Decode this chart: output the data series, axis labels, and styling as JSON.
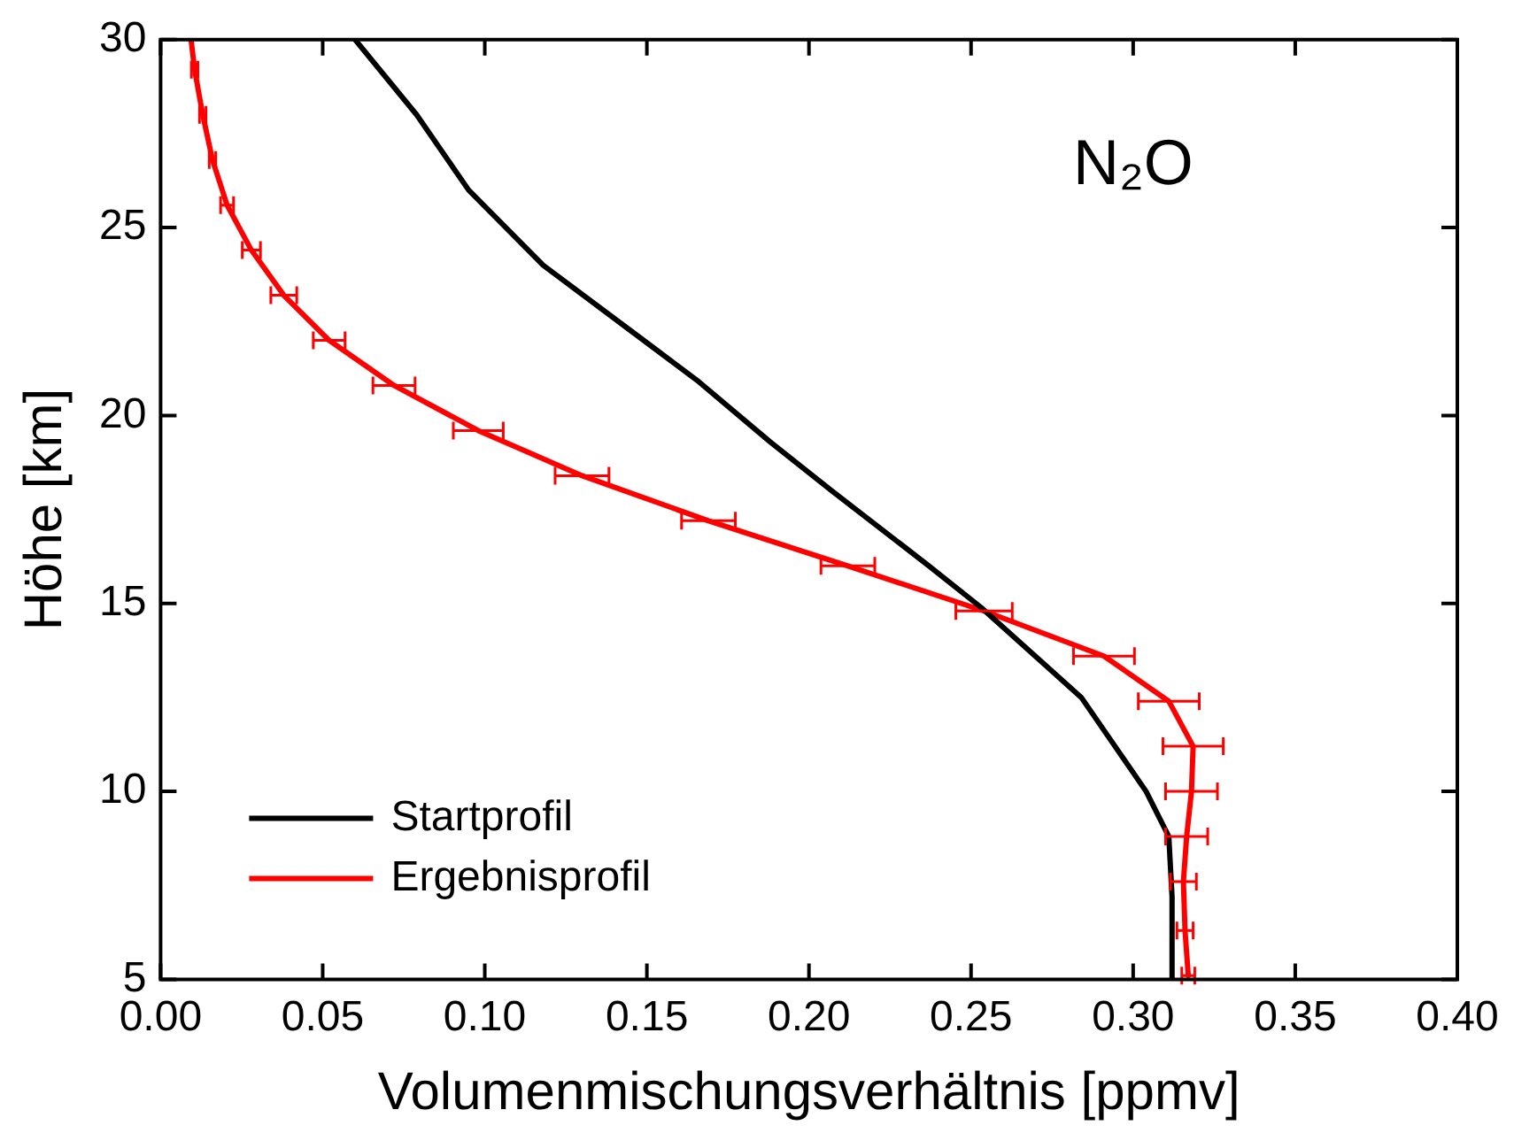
{
  "chart_data": {
    "type": "line",
    "xlabel": "Volumenmischungsverhältnis [ppmv]",
    "ylabel": "Höhe [km]",
    "xlim": [
      0,
      0.4
    ],
    "ylim": [
      5,
      30
    ],
    "xticks": [
      {
        "value": 0,
        "label": "0.00"
      },
      {
        "value": 0.05,
        "label": "0.05"
      },
      {
        "value": 0.1,
        "label": "0.10"
      },
      {
        "value": 0.15,
        "label": "0.15"
      },
      {
        "value": 0.2,
        "label": "0.20"
      },
      {
        "value": 0.25,
        "label": "0.25"
      },
      {
        "value": 0.3,
        "label": "0.30"
      },
      {
        "value": 0.35,
        "label": "0.35"
      },
      {
        "value": 0.4,
        "label": "0.40"
      }
    ],
    "yticks": [
      5,
      10,
      15,
      20,
      25,
      30
    ],
    "grid": false,
    "legend": "bottom left",
    "marker": "none",
    "line_style": "solid",
    "annotations": [
      "N₂O"
    ],
    "series": [
      {
        "name": "Startprofil",
        "color": "#000000",
        "x": [
          0.312,
          0.312,
          0.311,
          0.304,
          0.284,
          0.253,
          0.237,
          0.207,
          0.188,
          0.166,
          0.149,
          0.118,
          0.095,
          0.079,
          0.06
        ],
        "values": [
          5,
          7.2,
          8.8,
          10,
          12.5,
          14.9,
          16,
          18,
          19.3,
          20.9,
          22,
          24,
          26,
          28,
          30
        ]
      },
      {
        "name": "Ergebnisprofil",
        "color": "#ff0000",
        "x": [
          0.317,
          0.316,
          0.3155,
          0.3165,
          0.318,
          0.3185,
          0.311,
          0.291,
          0.254,
          0.212,
          0.169,
          0.13,
          0.098,
          0.072,
          0.052,
          0.038,
          0.028,
          0.0205,
          0.016,
          0.013,
          0.0105,
          0.0094
        ],
        "values": [
          5.1,
          6.3,
          7.6,
          8.8,
          10,
          11.2,
          12.4,
          13.6,
          14.8,
          16,
          17.2,
          18.4,
          19.6,
          20.8,
          22,
          23.2,
          24.4,
          25.6,
          26.8,
          28,
          29.2,
          30
        ],
        "xerrors": [
          0.002,
          0.0025,
          0.004,
          0.0065,
          0.008,
          0.0093,
          0.0094,
          0.0094,
          0.0087,
          0.0083,
          0.0083,
          0.0083,
          0.0077,
          0.0065,
          0.0049,
          0.004,
          0.0028,
          0.002,
          0.001,
          0.001,
          0.001,
          null
        ]
      }
    ]
  }
}
